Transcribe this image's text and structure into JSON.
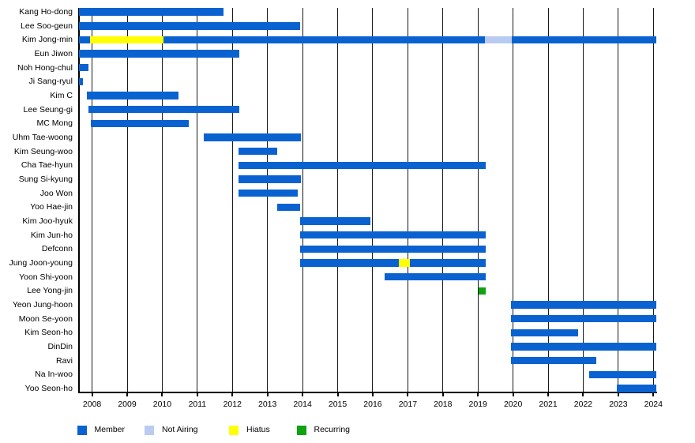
{
  "chart_data": {
    "type": "timeline-gantt",
    "title": "",
    "x_axis": {
      "unit": "year",
      "start": 2007.62,
      "end": 2024.08,
      "tick_labels": [
        "2008",
        "2009",
        "2010",
        "2011",
        "2012",
        "2013",
        "2014",
        "2015",
        "2016",
        "2017",
        "2018",
        "2019",
        "2020",
        "2021",
        "2022",
        "2023",
        "2024"
      ]
    },
    "statuses": {
      "member": {
        "label": "Member",
        "color": "#0a62d0"
      },
      "not_airing": {
        "label": "Not Airing",
        "color": "#b9cbf0"
      },
      "hiatus": {
        "label": "Hiatus",
        "color": "#ffff00"
      },
      "recurring": {
        "label": "Recurring",
        "color": "#10a310"
      }
    },
    "legend": [
      "member",
      "not_airing",
      "hiatus",
      "recurring"
    ],
    "rows": [
      {
        "name": "Kang Ho-dong",
        "segments": [
          {
            "status": "member",
            "start": 2007.62,
            "end": 2011.74
          }
        ]
      },
      {
        "name": "Lee Soo-geun",
        "segments": [
          {
            "status": "member",
            "start": 2007.62,
            "end": 2013.93
          }
        ]
      },
      {
        "name": "Kim Jong-min",
        "segments": [
          {
            "status": "member",
            "start": 2007.62,
            "end": 2007.95
          },
          {
            "status": "hiatus",
            "start": 2007.95,
            "end": 2010.04
          },
          {
            "status": "member",
            "start": 2010.04,
            "end": 2019.2
          },
          {
            "status": "not_airing",
            "start": 2019.2,
            "end": 2019.96
          },
          {
            "status": "member",
            "start": 2019.96,
            "end": 2024.08
          }
        ]
      },
      {
        "name": "Eun Jiwon",
        "segments": [
          {
            "status": "member",
            "start": 2007.62,
            "end": 2012.19
          }
        ]
      },
      {
        "name": "Noh Hong-chul",
        "segments": [
          {
            "status": "member",
            "start": 2007.62,
            "end": 2007.89
          }
        ]
      },
      {
        "name": "Ji Sang-ryul",
        "segments": [
          {
            "status": "member",
            "start": 2007.62,
            "end": 2007.75
          }
        ]
      },
      {
        "name": "Kim C",
        "segments": [
          {
            "status": "member",
            "start": 2007.86,
            "end": 2010.47
          }
        ]
      },
      {
        "name": "Lee Seung-gi",
        "segments": [
          {
            "status": "member",
            "start": 2007.89,
            "end": 2012.19
          }
        ]
      },
      {
        "name": "MC Mong",
        "segments": [
          {
            "status": "member",
            "start": 2007.96,
            "end": 2010.75
          }
        ]
      },
      {
        "name": "Uhm Tae-woong",
        "segments": [
          {
            "status": "member",
            "start": 2011.19,
            "end": 2013.95
          }
        ]
      },
      {
        "name": "Kim Seung-woo",
        "segments": [
          {
            "status": "member",
            "start": 2012.18,
            "end": 2013.28
          }
        ]
      },
      {
        "name": "Cha Tae-hyun",
        "segments": [
          {
            "status": "member",
            "start": 2012.18,
            "end": 2019.21
          }
        ]
      },
      {
        "name": "Sung Si-kyung",
        "segments": [
          {
            "status": "member",
            "start": 2012.18,
            "end": 2013.95
          }
        ]
      },
      {
        "name": "Joo Won",
        "segments": [
          {
            "status": "member",
            "start": 2012.18,
            "end": 2013.87
          }
        ]
      },
      {
        "name": "Yoo Hae-jin",
        "segments": [
          {
            "status": "member",
            "start": 2013.27,
            "end": 2013.92
          }
        ]
      },
      {
        "name": "Kim Joo-hyuk",
        "segments": [
          {
            "status": "member",
            "start": 2013.92,
            "end": 2015.94
          }
        ]
      },
      {
        "name": "Kim Jun-ho",
        "segments": [
          {
            "status": "member",
            "start": 2013.93,
            "end": 2019.21
          }
        ]
      },
      {
        "name": "Defconn",
        "segments": [
          {
            "status": "member",
            "start": 2013.93,
            "end": 2019.21
          }
        ]
      },
      {
        "name": "Jung Joon-young",
        "segments": [
          {
            "status": "member",
            "start": 2013.93,
            "end": 2016.74
          },
          {
            "status": "hiatus",
            "start": 2016.74,
            "end": 2017.06
          },
          {
            "status": "member",
            "start": 2017.06,
            "end": 2019.21
          }
        ]
      },
      {
        "name": "Yoon Shi-yoon",
        "segments": [
          {
            "status": "member",
            "start": 2016.33,
            "end": 2019.21
          }
        ]
      },
      {
        "name": "Lee Yong-jin",
        "segments": [
          {
            "status": "recurring",
            "start": 2019.02,
            "end": 2019.23
          }
        ]
      },
      {
        "name": "Yeon Jung-hoon",
        "segments": [
          {
            "status": "member",
            "start": 2019.95,
            "end": 2024.08
          }
        ]
      },
      {
        "name": "Moon Se-yoon",
        "segments": [
          {
            "status": "member",
            "start": 2019.95,
            "end": 2024.08
          }
        ]
      },
      {
        "name": "Kim Seon-ho",
        "segments": [
          {
            "status": "member",
            "start": 2019.95,
            "end": 2021.85
          }
        ]
      },
      {
        "name": "DinDin",
        "segments": [
          {
            "status": "member",
            "start": 2019.95,
            "end": 2024.08
          }
        ]
      },
      {
        "name": "Ravi",
        "segments": [
          {
            "status": "member",
            "start": 2019.95,
            "end": 2022.38
          }
        ]
      },
      {
        "name": "Na In-woo",
        "segments": [
          {
            "status": "member",
            "start": 2022.17,
            "end": 2024.08
          }
        ]
      },
      {
        "name": "Yoo Seon-ho",
        "segments": [
          {
            "status": "member",
            "start": 2022.96,
            "end": 2024.08
          }
        ]
      }
    ]
  }
}
